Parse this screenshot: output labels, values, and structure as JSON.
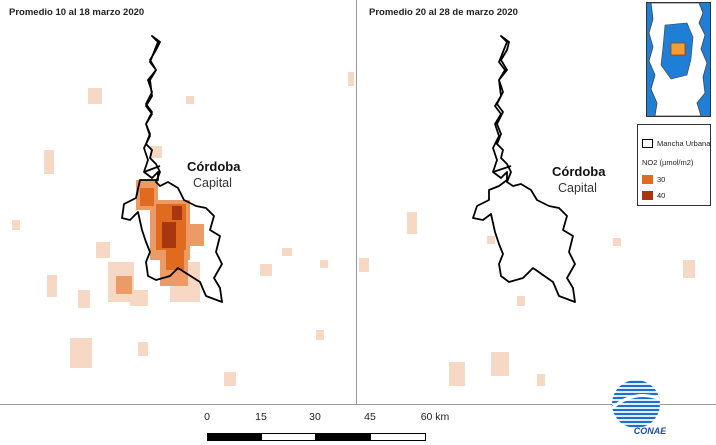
{
  "panels": {
    "left_title": "Promedio 10 al 18 marzo 2020",
    "right_title": "Promedio 20 al 28 de marzo 2020"
  },
  "city": {
    "name": "Córdoba",
    "subtitle": "Capital"
  },
  "legend": {
    "outline_label": "Mancha Urbana",
    "variable_label": "NO2 (µmol/m2)",
    "classes": [
      {
        "label": "30",
        "color": "#e06a1e"
      },
      {
        "label": "40",
        "color": "#a8360f"
      }
    ]
  },
  "scalebar": {
    "ticks": [
      "0",
      "15",
      "30",
      "45",
      "60 km"
    ]
  },
  "logo": {
    "text": "CONAE"
  },
  "colors": {
    "no2_light": "#f6d8c4",
    "no2_mid": "#ed9b66",
    "no2_high": "#e06a1e",
    "no2_max": "#a8360f",
    "inset_water": "#1f7fd6",
    "inset_highlight": "#f0a030",
    "urban_outline": "#000000"
  }
}
